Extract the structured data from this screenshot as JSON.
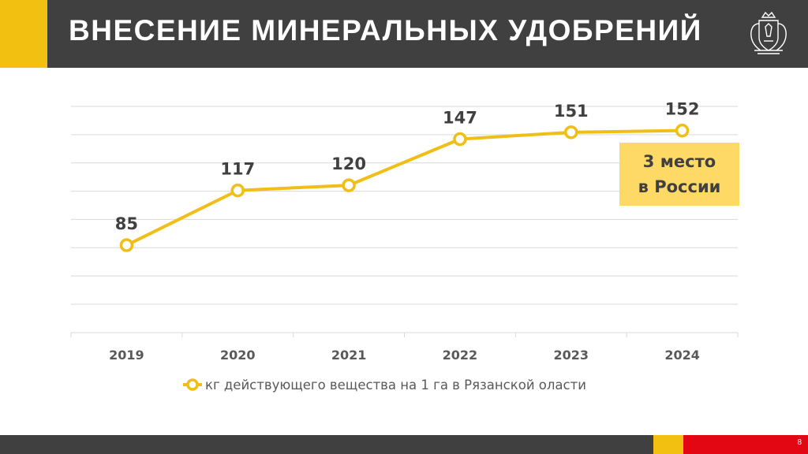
{
  "slide": {
    "title": "ВНЕСЕНИЕ МИНЕРАЛЬНЫХ УДОБРЕНИЙ",
    "page_number": "8"
  },
  "callout": {
    "line1": "3 место",
    "line2": "в России"
  },
  "colors": {
    "header": "#404040",
    "accent_yellow": "#f2c011",
    "accent_red": "#e30613",
    "series_line": "#f0be16",
    "callout_fill": "#ffd966"
  },
  "chart_data": {
    "type": "line",
    "categories": [
      "2019",
      "2020",
      "2021",
      "2022",
      "2023",
      "2024"
    ],
    "series": [
      {
        "name": "кг действующего вещества на 1 га в Рязанской оласти",
        "values": [
          85,
          117,
          120,
          147,
          151,
          152
        ]
      }
    ],
    "data_labels": [
      "85",
      "117",
      "120",
      "147",
      "151",
      "152"
    ],
    "ylim": [
      60,
      160
    ],
    "grid": true,
    "legend": "bottom",
    "marker": "hollow-circle"
  }
}
